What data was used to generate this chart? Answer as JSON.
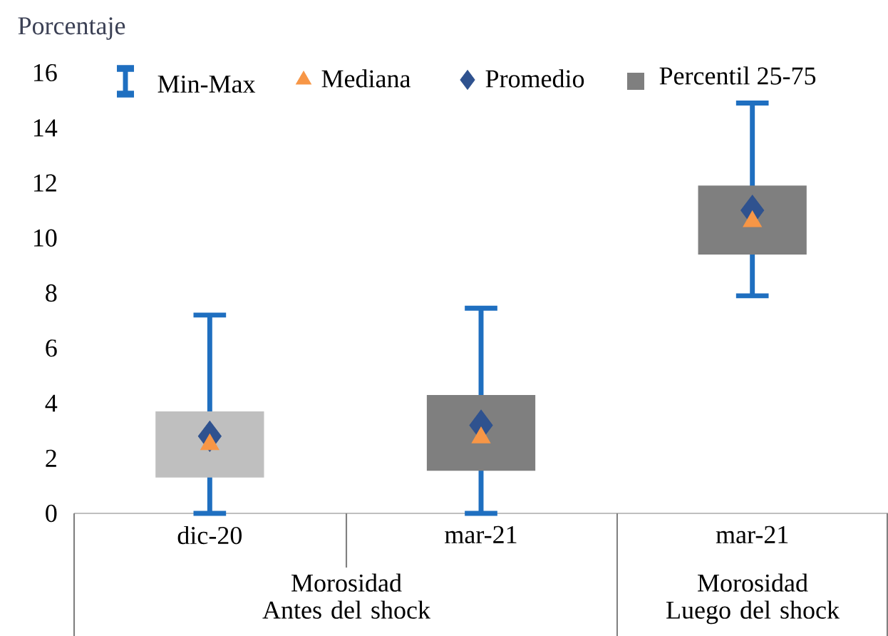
{
  "chart_data": {
    "type": "box",
    "ylabel": "Porcentaje",
    "categories": [
      "dic-20",
      "mar-21",
      "mar-21"
    ],
    "ylim": [
      0,
      16
    ],
    "yticks": [
      0,
      2,
      4,
      6,
      8,
      10,
      12,
      14,
      16
    ],
    "legend": "top",
    "grid": false,
    "annotations": [
      "Min-Max",
      "Morosidad Antes del shock",
      "Morosidad Luego del shock"
    ],
    "series": [
      {
        "type": "box",
        "name": "Percentil 25-75",
        "color": "#1f6fc0",
        "colors": [
          "#bfbfbf",
          "#7f7f7f",
          "#7f7f7f"
        ],
        "boxes": [
          {
            "low": 0,
            "q1": 1.3,
            "q3": 3.7,
            "high": 7.2
          },
          {
            "low": 0,
            "q1": 1.55,
            "q3": 4.3,
            "high": 7.45
          },
          {
            "low": 7.9,
            "q1": 9.4,
            "q3": 11.9,
            "high": 14.9
          }
        ]
      },
      {
        "type": "scatter",
        "name": "Mediana",
        "marker": "triangle",
        "color": "#f79646",
        "values": [
          2.5,
          2.75,
          10.6
        ]
      },
      {
        "type": "scatter",
        "name": "Promedio",
        "marker": "diamond",
        "color": "#2f528f",
        "values": [
          2.8,
          3.2,
          11.0
        ]
      }
    ]
  }
}
